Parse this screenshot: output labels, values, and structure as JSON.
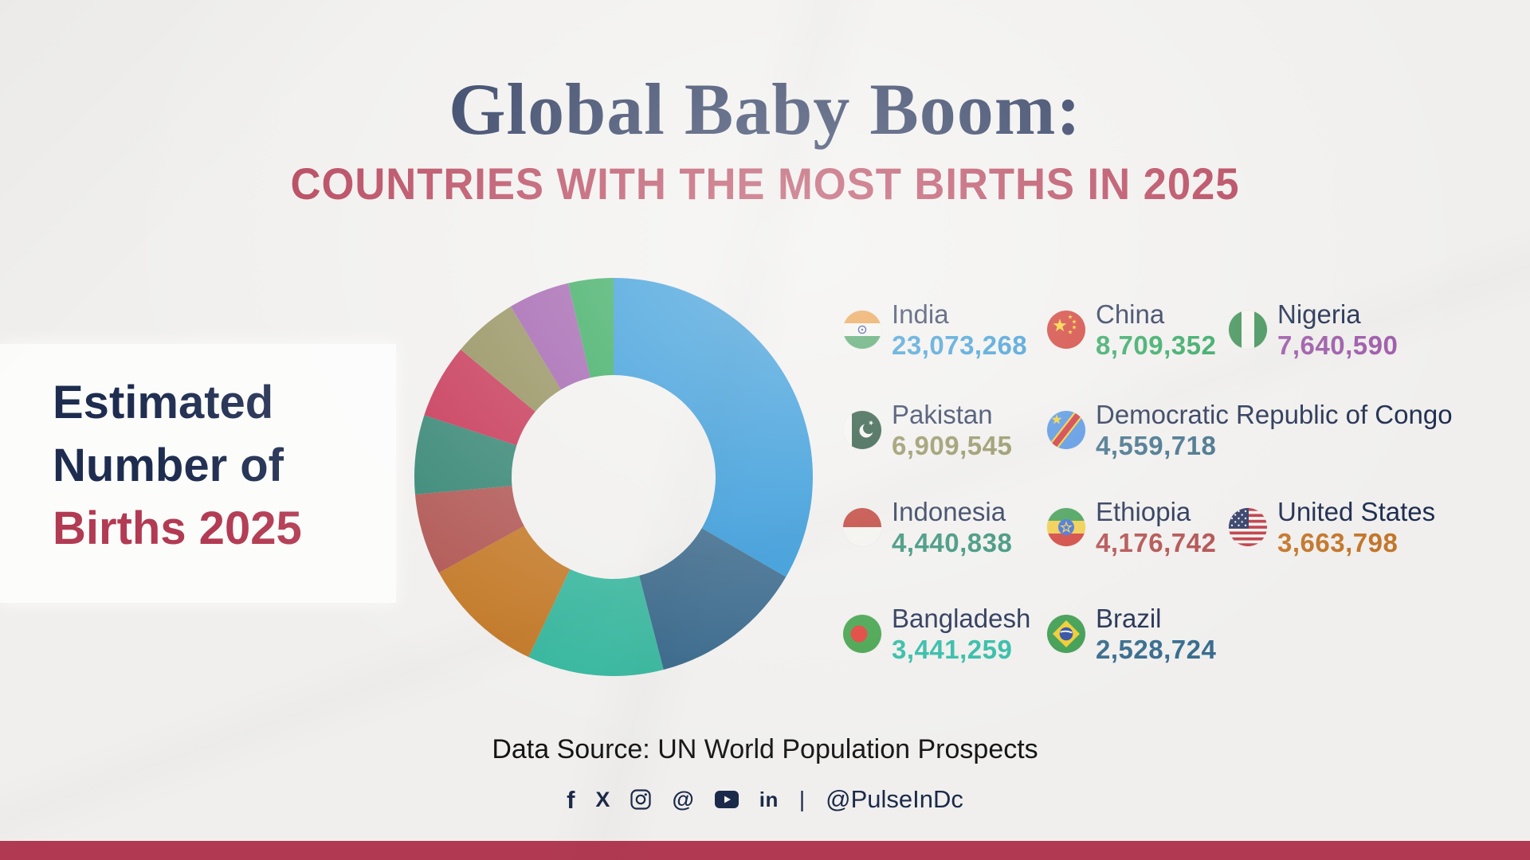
{
  "page": {
    "background": "#f0efed",
    "accent_navy": "#1c2b52",
    "accent_crimson": "#b23a52",
    "bottom_bar_color": "#b13a52"
  },
  "header": {
    "title": "Global Baby Boom:",
    "subtitle": "COUNTRIES WITH THE MOST BIRTHS IN 2025"
  },
  "left_panel": {
    "line1": "Estimated",
    "line2": "Number of",
    "line3": "Births 2025"
  },
  "chart_data": {
    "type": "pie",
    "subtype": "donut",
    "title": "Estimated Number of Births 2025",
    "categories": [
      "India",
      "China",
      "Nigeria",
      "Pakistan",
      "Democratic Republic of Congo",
      "Indonesia",
      "Ethiopia",
      "United States",
      "Bangladesh",
      "Brazil"
    ],
    "values": [
      23073268,
      8709352,
      7640590,
      6909545,
      4559718,
      4440838,
      4176742,
      3663798,
      3441259,
      2528724
    ],
    "colors": [
      "#2491d6",
      "#2d5f84",
      "#2eb49a",
      "#c1741f",
      "#ad4f4c",
      "#2b7f6c",
      "#c32a4c",
      "#8d8851",
      "#9a55a8",
      "#26a351"
    ],
    "start_angle_deg": 0,
    "direction": "clockwise",
    "inner_radius_ratio": 0.51,
    "legend_position": "right"
  },
  "legend": {
    "items": [
      {
        "name": "India",
        "value": "23,073,268",
        "value_color": "#2e93d1",
        "icon": "india-flag-icon"
      },
      {
        "name": "China",
        "value": "8,709,352",
        "value_color": "#2aa35b",
        "icon": "china-flag-icon"
      },
      {
        "name": "Nigeria",
        "value": "7,640,590",
        "value_color": "#9c58a8",
        "icon": "nigeria-flag-icon"
      },
      {
        "name": "Pakistan",
        "value": "6,909,545",
        "value_color": "#8b8a56",
        "icon": "pakistan-flag-icon"
      },
      {
        "name": "Democratic Republic of Congo",
        "value": "4,559,718",
        "value_color": "#3a6b85",
        "icon": "drc-flag-icon"
      },
      {
        "name": "Indonesia",
        "value": "4,440,838",
        "value_color": "#2e8b72",
        "icon": "indonesia-flag-icon"
      },
      {
        "name": "Ethiopia",
        "value": "4,176,742",
        "value_color": "#b04b4b",
        "icon": "ethiopia-flag-icon"
      },
      {
        "name": "United States",
        "value": "3,663,798",
        "value_color": "#c3762b",
        "icon": "us-flag-icon"
      },
      {
        "name": "Bangladesh",
        "value": "3,441,259",
        "value_color": "#2cbaa4",
        "icon": "bangladesh-flag-icon"
      },
      {
        "name": "Brazil",
        "value": "2,528,724",
        "value_color": "#356a8c",
        "icon": "brazil-flag-icon"
      }
    ]
  },
  "footer": {
    "source": "Data Source: UN World Population Prospects",
    "separator": "|",
    "handle": "@PulseInDc",
    "social_icons": [
      "facebook-icon",
      "x-icon",
      "instagram-icon",
      "threads-icon",
      "youtube-icon",
      "linkedin-icon"
    ]
  }
}
